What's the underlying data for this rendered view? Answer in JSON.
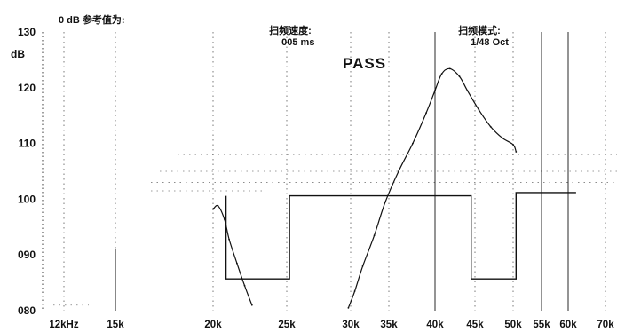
{
  "header": {
    "reference_label": "0 dB 参考值为:",
    "sweep_speed_label": "扫频速度:",
    "sweep_speed_value": "005 ms",
    "sweep_mode_label": "扫频模式:",
    "sweep_mode_value": "1/48 Oct"
  },
  "status": {
    "result": "PASS"
  },
  "colors": {
    "ink": "#111111",
    "background": "#ffffff"
  },
  "chart_data": {
    "type": "line",
    "title": "",
    "xlabel": "",
    "ylabel": "dB",
    "x_scale": "log",
    "x_tick_values": [
      12,
      15,
      20,
      25,
      30,
      35,
      40,
      45,
      50,
      55,
      60,
      70
    ],
    "x_tick_labels": [
      "12kHz",
      "15k",
      "20k",
      "25k",
      "30k",
      "35k",
      "40k",
      "45k",
      "50k",
      "55k",
      "60k",
      "70k"
    ],
    "y_tick_values": [
      80,
      90,
      100,
      110,
      120,
      130
    ],
    "y_tick_labels": [
      "080",
      "090",
      "100",
      "110",
      "120",
      "130"
    ],
    "ylim": [
      80,
      130
    ],
    "grid": "dotted vertical lines at frequency ticks, dotted horizontal tolerance lines",
    "series": [
      {
        "role": "tolerance-mask",
        "style": "solid step",
        "x": [
          20.8,
          20.8,
          25.2,
          25.2,
          44.5,
          44.5,
          50.5,
          50.5,
          62.0
        ],
        "y": [
          100.6,
          85.7,
          85.7,
          100.6,
          100.6,
          85.7,
          85.7,
          101.2,
          101.2
        ]
      },
      {
        "role": "measured-response-lower",
        "style": "solid curve",
        "x": [
          20.0,
          20.3,
          20.7,
          21.0,
          21.5,
          22.0,
          22.5
        ],
        "y": [
          98.2,
          98.8,
          96.4,
          92.8,
          88.5,
          84.5,
          81.0
        ]
      },
      {
        "role": "measured-response-main",
        "style": "solid curve",
        "x": [
          29.8,
          30.5,
          31.5,
          33.0,
          34.5,
          36.0,
          37.5,
          39.0,
          40.0,
          40.8,
          41.8,
          43.0,
          44.0,
          45.5,
          47.0,
          48.5,
          50.0,
          50.5
        ],
        "y": [
          80.5,
          83.5,
          88.0,
          93.5,
          99.5,
          105.0,
          110.0,
          115.5,
          119.5,
          122.5,
          123.4,
          122.0,
          119.5,
          116.0,
          113.0,
          111.0,
          109.8,
          108.5
        ]
      }
    ]
  }
}
